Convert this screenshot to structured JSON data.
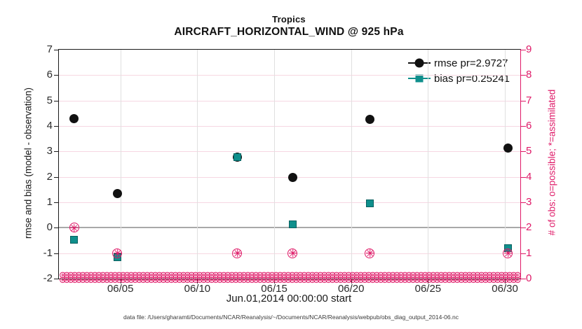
{
  "chart_data": {
    "type": "scatter",
    "title": "Tropics",
    "subtitle": "AIRCRAFT_HORIZONTAL_WIND @ 925 hPa",
    "xlabel": "Jun.01,2014 00:00:00 start",
    "ylabel_left": "rmse and bias (model - observation)",
    "ylabel_right": "# of obs: o=possible; *=assimilated",
    "x_range_days": [
      1,
      31
    ],
    "ylim_left": [
      -2,
      7
    ],
    "ylim_right": [
      0,
      9
    ],
    "grid": true,
    "legend_position": "top-right-inside",
    "zero_line_left_value": 0,
    "x_ticks": [
      {
        "day": 5,
        "label": "06/05"
      },
      {
        "day": 10,
        "label": "06/10"
      },
      {
        "day": 15,
        "label": "06/15"
      },
      {
        "day": 20,
        "label": "06/20"
      },
      {
        "day": 25,
        "label": "06/25"
      },
      {
        "day": 30,
        "label": "06/30"
      }
    ],
    "y_ticks_left": [
      "7",
      "6",
      "5",
      "4",
      "3",
      "2",
      "1",
      "0",
      "-1",
      "-2"
    ],
    "y_ticks_right": [
      "9",
      "8",
      "7",
      "6",
      "5",
      "4",
      "3",
      "2",
      "1",
      "0"
    ],
    "series": [
      {
        "name": "rmse pr=2.9727",
        "marker": "filled-circle",
        "color": "#111111",
        "axis": "left",
        "points": [
          {
            "day": 2.0,
            "value": 4.28
          },
          {
            "day": 4.8,
            "value": 1.35
          },
          {
            "day": 12.6,
            "value": 2.77
          },
          {
            "day": 16.2,
            "value": 1.97
          },
          {
            "day": 21.2,
            "value": 4.27
          },
          {
            "day": 30.2,
            "value": 3.12
          }
        ]
      },
      {
        "name": "bias pr=0.25241",
        "marker": "filled-square",
        "color": "#0f8f8c",
        "axis": "left",
        "points": [
          {
            "day": 2.0,
            "value": -0.46
          },
          {
            "day": 4.8,
            "value": -1.17
          },
          {
            "day": 12.6,
            "value": 2.77
          },
          {
            "day": 16.2,
            "value": 0.13
          },
          {
            "day": 21.2,
            "value": 0.95
          },
          {
            "day": 30.2,
            "value": -0.79
          }
        ]
      },
      {
        "name": "# of obs (o=possible, *=assimilated)",
        "marker": "circled-asterisk",
        "color": "#df1a68",
        "axis": "right",
        "points": [
          {
            "day": 2.0,
            "value": 2
          },
          {
            "day": 4.8,
            "value": 1
          },
          {
            "day": 12.6,
            "value": 1
          },
          {
            "day": 16.2,
            "value": 1
          },
          {
            "day": 21.2,
            "value": 1
          },
          {
            "day": 30.2,
            "value": 1
          }
        ]
      }
    ],
    "obs_zero_band": {
      "axis": "right",
      "value": 0,
      "glyph": "⊛",
      "rows": 2,
      "per_row": 114
    }
  },
  "legend": {
    "rmse_label": "rmse pr=2.9727",
    "bias_label": "bias pr=0.25241"
  },
  "colors": {
    "magenta": "#df1a68",
    "teal": "#0f8f8c",
    "marker_black": "#111111",
    "grid_pink": "#f6d7e2",
    "grid_gray": "#e0e0e0",
    "zero_line": "#a9a9a9"
  },
  "footer": {
    "text": "data file: /Users/gharamti/Documents/NCAR/Reanalysis/~/Documents/NCAR/Reanalysis/webpub/obs_diag_output_2014-06.nc"
  }
}
